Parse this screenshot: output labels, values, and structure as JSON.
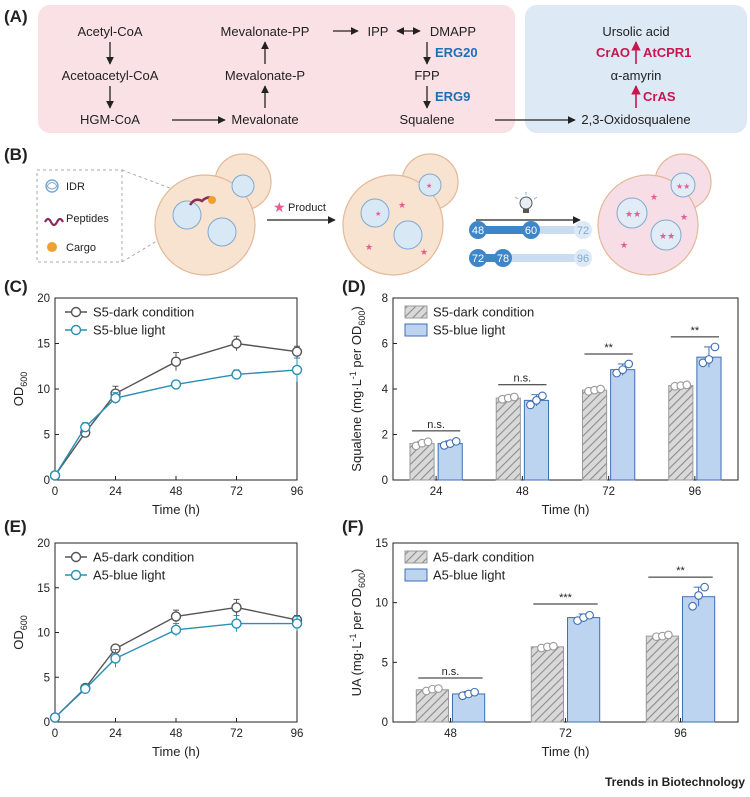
{
  "panel_labels": {
    "a": "(A)",
    "b": "(B)",
    "c": "(C)",
    "d": "(D)",
    "e": "(E)",
    "f": "(F)"
  },
  "pathway": {
    "acetyl_coa": "Acetyl-CoA",
    "acetoacetyl_coa": "Acetoacetyl-CoA",
    "hgm_coa": "HGM-CoA",
    "mevalonate_pp": "Mevalonate-PP",
    "mevalonate_p": "Mevalonate-P",
    "mevalonate": "Mevalonate",
    "ipp": "IPP",
    "dmapp": "DMAPP",
    "fpp": "FPP",
    "squalene": "Squalene",
    "erg20": "ERG20",
    "erg9": "ERG9",
    "ursolic_acid": "Ursolic acid",
    "alpha_amyrin": "α-amyrin",
    "oxidosqualene": "2,3-Oxidosqualene",
    "crao": "CrAO",
    "atcpr1": "AtCPR1",
    "cras": "CrAS",
    "colors": {
      "pink_bg": "#f9e1e6",
      "blue_bg": "#dde9f5",
      "enzyme_blue": "#1f6fb4",
      "enzyme_red": "#c8174f"
    }
  },
  "schematic": {
    "legend_idr": "IDR",
    "legend_peptides": "Peptides",
    "legend_cargo": "Cargo",
    "product_label": "Product",
    "timeline_1": [
      "48",
      "60",
      "72"
    ],
    "timeline_2": [
      "72",
      "78",
      "96"
    ],
    "colors": {
      "cell": "#f7e3cf",
      "cell_border": "#e3b899",
      "product": "#e65b91",
      "timeline": "#3e86c8",
      "timeline_light": "#c9dcf0"
    }
  },
  "chart_data": [
    {
      "panel": "C",
      "type": "line",
      "xlabel": "Time (h)",
      "ylabel": "OD",
      "ylabel_sub": "600",
      "xticks": [
        0,
        24,
        48,
        72,
        96
      ],
      "yticks": [
        0,
        5,
        10,
        15,
        20
      ],
      "xlim": [
        0,
        96
      ],
      "ylim": [
        0,
        20
      ],
      "series": [
        {
          "name": "S5-dark condition",
          "color": "#555555",
          "x": [
            0,
            12,
            24,
            48,
            72,
            96
          ],
          "y": [
            0.5,
            5.2,
            9.5,
            13.0,
            15.0,
            14.1
          ],
          "err": [
            0.1,
            0.4,
            0.8,
            1.0,
            0.8,
            0.6
          ]
        },
        {
          "name": "S5-blue light",
          "color": "#2a8fb4",
          "x": [
            0,
            12,
            24,
            48,
            72,
            96
          ],
          "y": [
            0.5,
            5.8,
            9.0,
            10.5,
            11.6,
            12.1
          ],
          "err": [
            0.1,
            0.5,
            0.6,
            0.4,
            0.5,
            1.3
          ]
        }
      ]
    },
    {
      "panel": "D",
      "type": "bar",
      "xlabel": "Time (h)",
      "ylabel": "Squalene (mg·L",
      "ylabel_sup": "-1",
      "ylabel_mid": " per OD",
      "ylabel_sub": "600",
      "ylabel_end": ")",
      "categories": [
        "24",
        "48",
        "72",
        "96"
      ],
      "yticks": [
        0,
        2,
        4,
        6,
        8
      ],
      "ylim": [
        0,
        8
      ],
      "significance": [
        "n.s.",
        "n.s.",
        "**",
        "**"
      ],
      "series": [
        {
          "name": "S5-dark condition",
          "values": [
            1.6,
            3.6,
            3.95,
            4.15
          ],
          "err": [
            0.1,
            0.1,
            0.1,
            0.05
          ],
          "points": [
            [
              1.5,
              1.62,
              1.68
            ],
            [
              3.55,
              3.6,
              3.65
            ],
            [
              3.9,
              3.95,
              4.0
            ],
            [
              4.12,
              4.15,
              4.18
            ]
          ]
        },
        {
          "name": "S5-blue light",
          "values": [
            1.6,
            3.5,
            4.85,
            5.4
          ],
          "err": [
            0.12,
            0.25,
            0.25,
            0.45
          ],
          "points": [
            [
              1.52,
              1.6,
              1.7
            ],
            [
              3.3,
              3.5,
              3.7
            ],
            [
              4.7,
              4.85,
              5.1
            ],
            [
              5.15,
              5.3,
              5.85
            ]
          ]
        }
      ]
    },
    {
      "panel": "E",
      "type": "line",
      "xlabel": "Time (h)",
      "ylabel": "OD",
      "ylabel_sub": "600",
      "xticks": [
        0,
        24,
        48,
        72,
        96
      ],
      "yticks": [
        0,
        5,
        10,
        15,
        20
      ],
      "xlim": [
        0,
        96
      ],
      "ylim": [
        0,
        20
      ],
      "series": [
        {
          "name": "A5-dark condition",
          "color": "#555555",
          "x": [
            0,
            12,
            24,
            48,
            72,
            96
          ],
          "y": [
            0.5,
            3.8,
            8.2,
            11.8,
            12.8,
            11.4
          ],
          "err": [
            0.1,
            0.3,
            0.4,
            0.7,
            0.9,
            0.5
          ]
        },
        {
          "name": "A5-blue light",
          "color": "#2a8fb4",
          "x": [
            0,
            12,
            24,
            48,
            72,
            96
          ],
          "y": [
            0.5,
            3.7,
            7.1,
            10.3,
            11.0,
            11.0
          ],
          "err": [
            0.1,
            0.4,
            1.0,
            0.7,
            0.9,
            0.8
          ]
        }
      ]
    },
    {
      "panel": "F",
      "type": "bar",
      "xlabel": "Time (h)",
      "ylabel": "UA (mg·L",
      "ylabel_sup": "-1",
      "ylabel_mid": " per OD",
      "ylabel_sub": "600",
      "ylabel_end": ")",
      "categories": [
        "48",
        "72",
        "96"
      ],
      "yticks": [
        0,
        5,
        10,
        15
      ],
      "ylim": [
        0,
        15
      ],
      "significance": [
        "n.s.",
        "***",
        "**"
      ],
      "series": [
        {
          "name": "A5-dark condition",
          "values": [
            2.7,
            6.3,
            7.2
          ],
          "err": [
            0.15,
            0.1,
            0.1
          ],
          "points": [
            [
              2.6,
              2.75,
              2.8
            ],
            [
              6.2,
              6.3,
              6.35
            ],
            [
              7.15,
              7.2,
              7.3
            ]
          ]
        },
        {
          "name": "A5-blue light",
          "values": [
            2.35,
            8.75,
            10.5
          ],
          "err": [
            0.2,
            0.3,
            0.8
          ],
          "points": [
            [
              2.2,
              2.35,
              2.5
            ],
            [
              8.5,
              8.75,
              8.95
            ],
            [
              9.7,
              10.6,
              11.3
            ]
          ]
        }
      ]
    }
  ],
  "footer": {
    "brand": "Trends in Biotechnology"
  }
}
